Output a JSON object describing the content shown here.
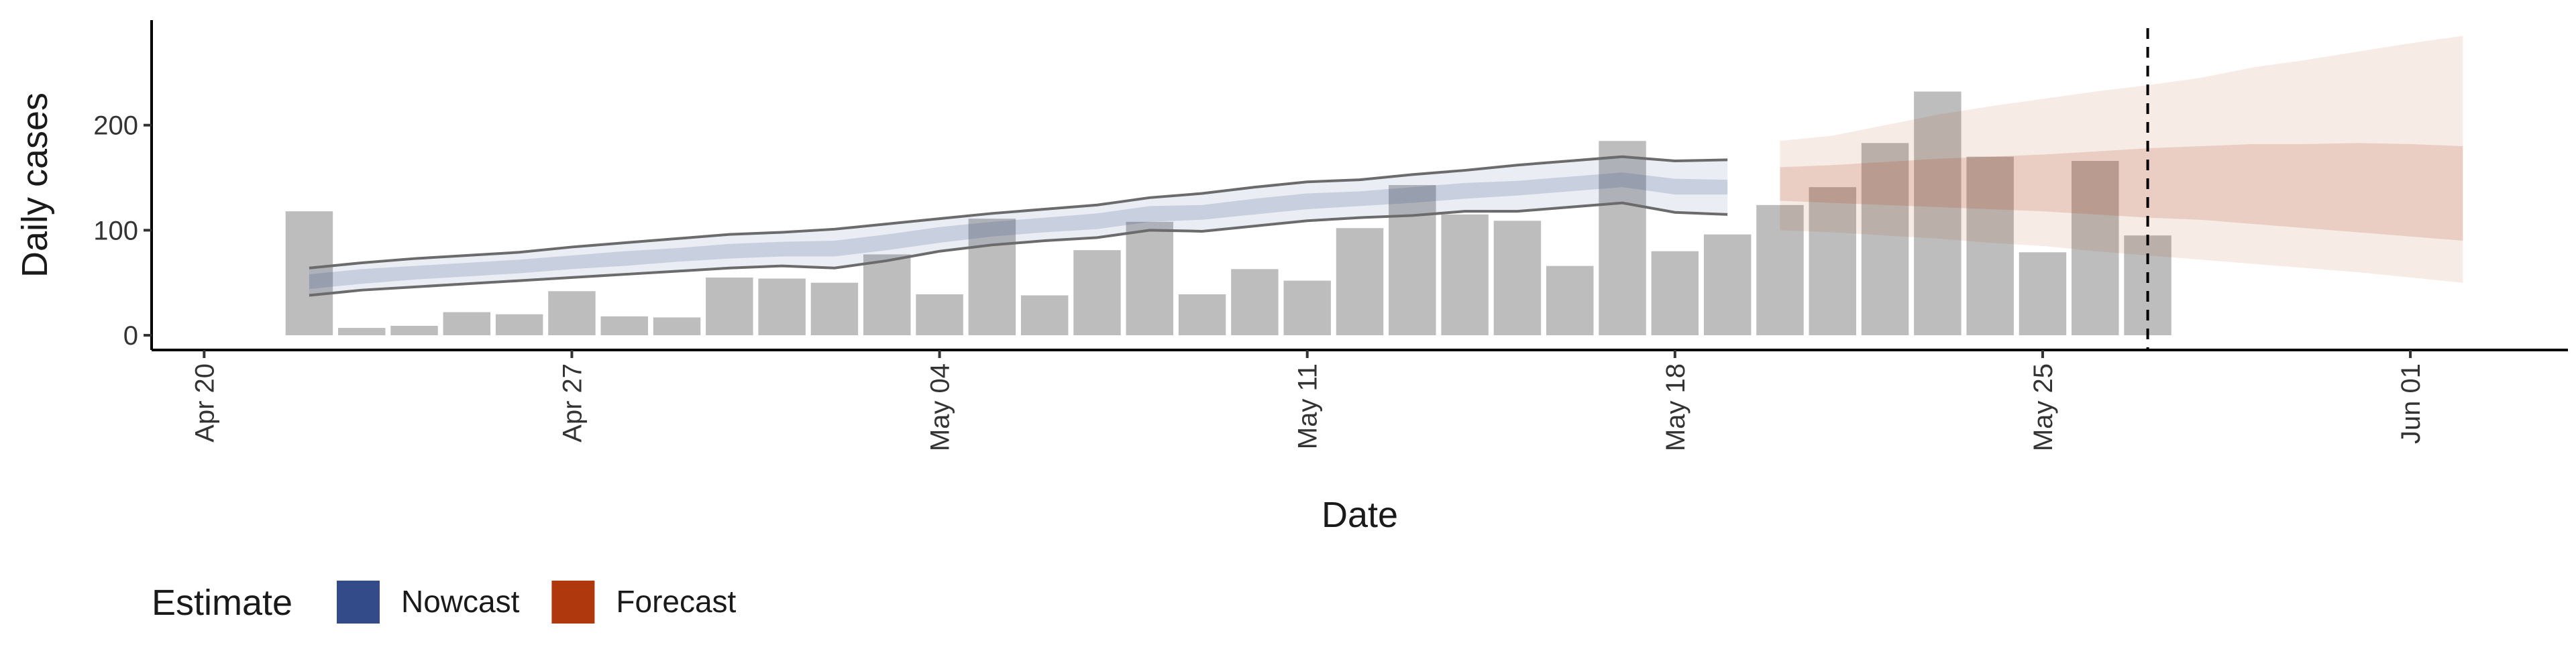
{
  "chart_data": {
    "type": "bar",
    "x_label": "Date",
    "y_label": "Daily cases",
    "xlim": [
      "Apr 19",
      "Jun 04"
    ],
    "xticks": [
      "Apr 20",
      "Apr 27",
      "May 04",
      "May 11",
      "May 18",
      "May 25",
      "Jun 01"
    ],
    "ylim": [
      -14,
      300
    ],
    "yticks": [
      0,
      100,
      200
    ],
    "bar_color": "#bdbdbd",
    "line_color": "#6b6b6b",
    "vline": "May 27",
    "x": [
      "Apr 22",
      "Apr 23",
      "Apr 24",
      "Apr 25",
      "Apr 26",
      "Apr 27",
      "Apr 28",
      "Apr 29",
      "Apr 30",
      "May 01",
      "May 02",
      "May 03",
      "May 04",
      "May 05",
      "May 06",
      "May 07",
      "May 08",
      "May 09",
      "May 10",
      "May 11",
      "May 12",
      "May 13",
      "May 14",
      "May 15",
      "May 16",
      "May 17",
      "May 18",
      "May 19",
      "May 20",
      "May 21",
      "May 22",
      "May 23",
      "May 24",
      "May 25",
      "May 26",
      "May 27"
    ],
    "values": [
      118,
      7,
      9,
      22,
      20,
      42,
      18,
      17,
      55,
      54,
      50,
      77,
      39,
      111,
      38,
      81,
      108,
      39,
      63,
      52,
      102,
      143,
      115,
      109,
      66,
      185,
      80,
      96,
      124,
      141,
      183,
      232,
      170,
      79,
      166,
      95
    ],
    "legend_title": "Estimate",
    "series": [
      {
        "name": "Nowcast",
        "color": "#344b8a",
        "x": [
          "Apr 22",
          "Apr 23",
          "Apr 24",
          "Apr 25",
          "Apr 26",
          "Apr 27",
          "Apr 28",
          "Apr 29",
          "Apr 30",
          "May 01",
          "May 02",
          "May 03",
          "May 04",
          "May 05",
          "May 06",
          "May 07",
          "May 08",
          "May 09",
          "May 10",
          "May 11",
          "May 12",
          "May 13",
          "May 14",
          "May 15",
          "May 16",
          "May 17",
          "May 18",
          "May 19"
        ],
        "upper_90": [
          64,
          69,
          73,
          76,
          79,
          84,
          88,
          92,
          96,
          98,
          101,
          106,
          111,
          116,
          120,
          124,
          131,
          135,
          141,
          146,
          148,
          153,
          157,
          162,
          166,
          170,
          166,
          167
        ],
        "lower_90": [
          38,
          43,
          46,
          49,
          52,
          55,
          58,
          61,
          64,
          66,
          64,
          71,
          80,
          86,
          90,
          93,
          100,
          99,
          104,
          109,
          112,
          114,
          118,
          118,
          122,
          126,
          117,
          115
        ],
        "upper_50": [
          58,
          63,
          66,
          69,
          72,
          76,
          80,
          83,
          87,
          89,
          90,
          96,
          103,
          108,
          112,
          116,
          123,
          124,
          130,
          135,
          137,
          141,
          145,
          147,
          151,
          155,
          149,
          148
        ],
        "lower_50": [
          44,
          49,
          53,
          56,
          59,
          63,
          66,
          70,
          73,
          75,
          75,
          81,
          88,
          94,
          98,
          101,
          108,
          110,
          115,
          120,
          123,
          126,
          130,
          133,
          137,
          141,
          134,
          134
        ]
      },
      {
        "name": "Forecast",
        "color": "#b0380d",
        "x": [
          "May 20",
          "May 21",
          "May 22",
          "May 23",
          "May 24",
          "May 25",
          "May 26",
          "May 27",
          "May 28",
          "May 29",
          "May 30",
          "May 31",
          "Jun 01",
          "Jun 02"
        ],
        "upper_90": [
          185,
          190,
          200,
          210,
          218,
          225,
          232,
          238,
          245,
          255,
          262,
          270,
          278,
          285
        ],
        "lower_90": [
          100,
          98,
          95,
          92,
          88,
          85,
          80,
          76,
          72,
          68,
          64,
          60,
          55,
          50
        ],
        "upper_50": [
          160,
          162,
          165,
          168,
          170,
          172,
          175,
          178,
          180,
          182,
          182,
          183,
          182,
          180
        ],
        "lower_50": [
          128,
          126,
          124,
          122,
          120,
          118,
          115,
          112,
          110,
          106,
          102,
          98,
          94,
          90
        ]
      }
    ]
  }
}
